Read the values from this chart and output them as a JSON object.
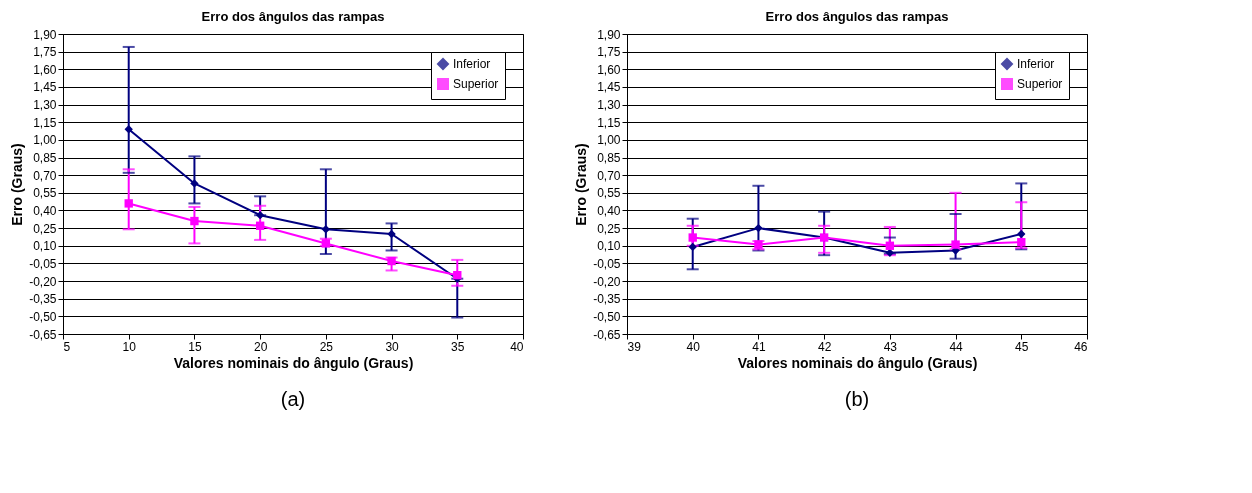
{
  "chart_data": [
    {
      "type": "line",
      "title": "Erro dos ângulos das rampas",
      "xlabel": "Valores nominais do ângulo (Graus)",
      "ylabel": "Erro (Graus)",
      "annotations": [
        "(a)"
      ],
      "x": [
        10,
        15,
        20,
        25,
        30,
        35
      ],
      "xlim": [
        5,
        40
      ],
      "xticks": [
        5,
        10,
        15,
        20,
        25,
        30,
        35,
        40
      ],
      "ylim": [
        -0.65,
        1.9
      ],
      "yticks": [
        {
          "value": -0.65,
          "label": "-0,65"
        },
        {
          "value": -0.5,
          "label": "-0,50"
        },
        {
          "value": -0.35,
          "label": "-0,35"
        },
        {
          "value": -0.2,
          "label": "-0,20"
        },
        {
          "value": -0.05,
          "label": "-0,05"
        },
        {
          "value": 0.1,
          "label": "0,10"
        },
        {
          "value": 0.25,
          "label": "0,25"
        },
        {
          "value": 0.4,
          "label": "0,40"
        },
        {
          "value": 0.55,
          "label": "0,55"
        },
        {
          "value": 0.7,
          "label": "0,70"
        },
        {
          "value": 0.85,
          "label": "0,85"
        },
        {
          "value": 1.0,
          "label": "1,00"
        },
        {
          "value": 1.15,
          "label": "1,15"
        },
        {
          "value": 1.3,
          "label": "1,30"
        },
        {
          "value": 1.45,
          "label": "1,45"
        },
        {
          "value": 1.6,
          "label": "1,60"
        },
        {
          "value": 1.75,
          "label": "1,75"
        },
        {
          "value": 1.9,
          "label": "1,90"
        }
      ],
      "grid": "y",
      "legend": "top right",
      "series": [
        {
          "name": "Inferior",
          "color": "#000080",
          "marker": "diamond",
          "values": [
            1.09,
            0.63,
            0.36,
            0.24,
            0.2,
            -0.18
          ],
          "errors": [
            [
              0.72,
              1.79
            ],
            [
              0.46,
              0.86
            ],
            [
              0.36,
              0.52
            ],
            [
              0.03,
              0.75
            ],
            [
              0.06,
              0.29
            ],
            [
              -0.51,
              -0.18
            ]
          ]
        },
        {
          "name": "Superior",
          "color": "#ff00ff",
          "marker": "square",
          "values": [
            0.46,
            0.31,
            0.27,
            0.12,
            -0.03,
            -0.15
          ],
          "errors": [
            [
              0.24,
              0.75
            ],
            [
              0.12,
              0.43
            ],
            [
              0.15,
              0.44
            ],
            [
              0.1,
              0.16
            ],
            [
              -0.11,
              0.0
            ],
            [
              -0.24,
              -0.02
            ]
          ]
        }
      ]
    },
    {
      "type": "line",
      "title": "Erro dos ângulos das rampas",
      "xlabel": "Valores nominais do ângulo (Graus)",
      "ylabel": "Erro (Graus)",
      "annotations": [
        "(b)"
      ],
      "x": [
        40,
        41,
        42,
        43,
        44,
        45
      ],
      "xlim": [
        39,
        46
      ],
      "xticks": [
        39,
        40,
        41,
        42,
        43,
        44,
        45,
        46
      ],
      "ylim": [
        -0.65,
        1.9
      ],
      "yticks": [
        {
          "value": -0.65,
          "label": "-0,65"
        },
        {
          "value": -0.5,
          "label": "-0,50"
        },
        {
          "value": -0.35,
          "label": "-0,35"
        },
        {
          "value": -0.2,
          "label": "-0,20"
        },
        {
          "value": -0.05,
          "label": "-0,05"
        },
        {
          "value": 0.1,
          "label": "0,10"
        },
        {
          "value": 0.25,
          "label": "0,25"
        },
        {
          "value": 0.4,
          "label": "0,40"
        },
        {
          "value": 0.55,
          "label": "0,55"
        },
        {
          "value": 0.7,
          "label": "0,70"
        },
        {
          "value": 0.85,
          "label": "0,85"
        },
        {
          "value": 1.0,
          "label": "1,00"
        },
        {
          "value": 1.15,
          "label": "1,15"
        },
        {
          "value": 1.3,
          "label": "1,30"
        },
        {
          "value": 1.45,
          "label": "1,45"
        },
        {
          "value": 1.6,
          "label": "1,60"
        },
        {
          "value": 1.75,
          "label": "1,75"
        },
        {
          "value": 1.9,
          "label": "1,90"
        }
      ],
      "grid": "y",
      "legend": "top right",
      "series": [
        {
          "name": "Inferior",
          "color": "#000080",
          "marker": "diamond",
          "values": [
            0.09,
            0.25,
            0.17,
            0.04,
            0.06,
            0.2
          ],
          "errors": [
            [
              -0.1,
              0.33
            ],
            [
              0.06,
              0.61
            ],
            [
              0.02,
              0.39
            ],
            [
              0.03,
              0.17
            ],
            [
              -0.01,
              0.37
            ],
            [
              0.07,
              0.63
            ]
          ]
        },
        {
          "name": "Superior",
          "color": "#ff00ff",
          "marker": "square",
          "values": [
            0.17,
            0.11,
            0.17,
            0.1,
            0.11,
            0.13
          ],
          "errors": [
            [
              0.1,
              0.27
            ],
            [
              0.07,
              0.14
            ],
            [
              0.04,
              0.27
            ],
            [
              0.02,
              0.26
            ],
            [
              0.07,
              0.55
            ],
            [
              0.08,
              0.47
            ]
          ]
        }
      ]
    }
  ]
}
